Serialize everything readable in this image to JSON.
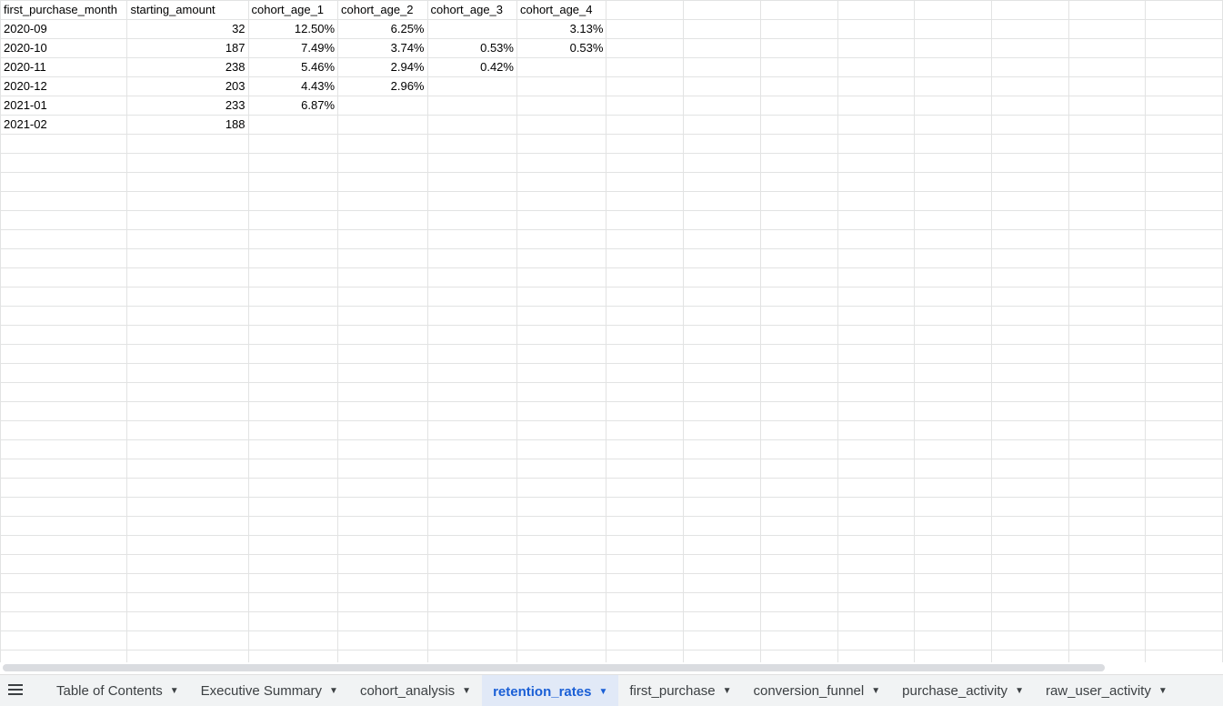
{
  "sheet": {
    "columns": [
      {
        "align": "left"
      },
      {
        "align": "right"
      },
      {
        "align": "right"
      },
      {
        "align": "right"
      },
      {
        "align": "right"
      },
      {
        "align": "right"
      },
      {
        "align": "left"
      },
      {
        "align": "left"
      },
      {
        "align": "left"
      },
      {
        "align": "left"
      },
      {
        "align": "left"
      },
      {
        "align": "left"
      },
      {
        "align": "left"
      },
      {
        "align": "left"
      }
    ],
    "header": [
      "first_purchase_month",
      "starting_amount",
      "cohort_age_1",
      "cohort_age_2",
      "cohort_age_3",
      "cohort_age_4"
    ],
    "rows": [
      [
        "2020-09",
        "32",
        "12.50%",
        "6.25%",
        "",
        "3.13%"
      ],
      [
        "2020-10",
        "187",
        "7.49%",
        "3.74%",
        "0.53%",
        "0.53%"
      ],
      [
        "2020-11",
        "238",
        "5.46%",
        "2.94%",
        "0.42%",
        ""
      ],
      [
        "2020-12",
        "203",
        "4.43%",
        "2.96%",
        "",
        ""
      ],
      [
        "2021-01",
        "233",
        "6.87%",
        "",
        "",
        ""
      ],
      [
        "2021-02",
        "188",
        "",
        "",
        "",
        ""
      ]
    ],
    "empty_row_count": 28
  },
  "tabs": [
    {
      "label": "Table of Contents",
      "active": false
    },
    {
      "label": "Executive Summary",
      "active": false
    },
    {
      "label": "cohort_analysis",
      "active": false
    },
    {
      "label": "retention_rates",
      "active": true
    },
    {
      "label": "first_purchase",
      "active": false
    },
    {
      "label": "conversion_funnel",
      "active": false
    },
    {
      "label": "purchase_activity",
      "active": false
    },
    {
      "label": "raw_user_activity",
      "active": false
    }
  ],
  "icons": {
    "all_sheets": "hamburger-menu-icon",
    "tab_menu": "caret-down-icon"
  },
  "colors": {
    "active_tab_bg": "#e1e9f7",
    "active_tab_text": "#1a5fd6",
    "grid_line": "#e2e3e3",
    "tab_bar_bg": "#f1f3f4"
  }
}
